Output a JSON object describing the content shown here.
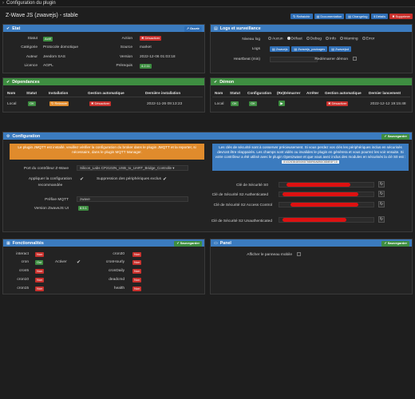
{
  "topbar": {
    "title": "Configuration du plugin"
  },
  "header": {
    "title": "Z-Wave JS (zwavejs) - stable",
    "buttons": [
      {
        "label": "Rafraichir",
        "color": "#2f6fb7"
      },
      {
        "label": "Documentation",
        "color": "#2f6fb7"
      },
      {
        "label": "Changelog",
        "color": "#2f6fb7"
      },
      {
        "label": "Détails",
        "color": "#2f6fb7"
      },
      {
        "label": "Supprimer",
        "color": "#c9302c"
      }
    ]
  },
  "etat": {
    "title": "Etat",
    "ouvrir": "Ouvrir",
    "statut_label": "Statut",
    "statut": "Actif",
    "categorie_label": "Catégorie",
    "categorie": "Protocole domotique",
    "auteur_label": "Auteur",
    "auteur": "Jeedom SAS",
    "licence_label": "Licence",
    "licence": "AGPL",
    "action_label": "Action",
    "action": "Désactiver",
    "source_label": "Source",
    "source": "market",
    "version_label": "Version",
    "version": "2022-12-06 01:03:18",
    "prerequis_label": "Prérequis",
    "prerequis": "4.2.11"
  },
  "logs": {
    "title": "Logs et surveillance",
    "niveau_label": "Niveau log",
    "levels": [
      "Aucun",
      "Défaut",
      "Debug",
      "Info",
      "Warning",
      "Error"
    ],
    "logs_label": "Logs",
    "log_buttons": [
      "Zwavejs",
      "Zwavejs_packages",
      "Zwavejsd"
    ],
    "heartbeat_label": "Heartbeat (min)",
    "redemarrer_label": "Redémarrer démon"
  },
  "dependances": {
    "title": "Dépendances",
    "headers": [
      "Nom",
      "Statut",
      "Installation",
      "Gestion automatique",
      "Dernière installation"
    ],
    "row": {
      "nom": "Local",
      "statut": "OK",
      "installation": "Relancer",
      "gestion": "Désactiver",
      "date": "2022-11-26 09:13:23"
    }
  },
  "demon": {
    "title": "Démon",
    "headers": [
      "Nom",
      "Statut",
      "Configuration",
      "(Re)Démarrer",
      "Arrêter",
      "Gestion automatique",
      "Dernier lancement"
    ],
    "row": {
      "nom": "Local",
      "statut": "OK",
      "configuration": "OK",
      "gestion": "Désactiver",
      "date": "2022-12-12 19:15:48"
    }
  },
  "configuration": {
    "title": "Configuration",
    "save": "Sauvegarder",
    "alert_orange": "Le plugin JMQTT est installé, veuillez vérifier la configuration du broker dans le plugin JMQTT et la reporter, si nécessaire, dans le plugin MQTT Manager.",
    "port_label": "Port du contrôleur Z-Wave",
    "port_value": "Silicon_Labs CP2102N_USB_to_UART_Bridge_Controlle",
    "appliquer_label": "Appliquer la configuration recommandée",
    "suppression_label": "Suppression des périphériques exclus",
    "prefixe_label": "Préfixe MQTT",
    "prefixe_value": "zwave",
    "version_label": "Version ZwaveJS UI",
    "version_value": "8.5.1",
    "alert_blue": "Les clés de sécurité sont à conserver précieusement. Si vous perdez vos clés les périphériques inclus en sécurisés devront être réappairés. Les champs sont vidés ou invalides le plugin en génèrera et vous pourrez les voir ensuite. Si votre contrôleur a été utilisé avec le plugin Openzwave et que vous avez inclus des modules en sécurisés la clé S0 est :",
    "s0_key": "0102030405060708090A0B0C0D0E0F10",
    "keys": [
      "Clé de Sécurité S0",
      "Clé de Sécurité S2 Authenticated",
      "Clé de Sécurité S2 Access Control",
      "Clé de Sécurité S2 Unauthenticated"
    ]
  },
  "fonctionnalites": {
    "title": "Fonctionnalités",
    "save": "Sauvegarder",
    "left": [
      {
        "name": "interact",
        "status": "Non"
      },
      {
        "name": "cron",
        "status": "Oui"
      },
      {
        "name": "cron5",
        "status": "Non"
      },
      {
        "name": "cron10",
        "status": "Non"
      },
      {
        "name": "cron15",
        "status": "Non"
      }
    ],
    "activer_label": "Activer",
    "right": [
      {
        "name": "cron30",
        "status": "Non"
      },
      {
        "name": "cronHourly",
        "status": "Non"
      },
      {
        "name": "cronDaily",
        "status": "Non"
      },
      {
        "name": "deadcmd",
        "status": "Non"
      },
      {
        "name": "health",
        "status": "Non"
      }
    ]
  },
  "panel": {
    "title": "Panel",
    "save": "Sauvegarder",
    "afficher_label": "Afficher le panneau mobile"
  }
}
